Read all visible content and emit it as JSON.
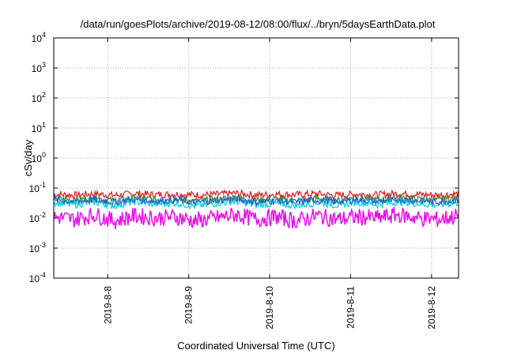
{
  "chart_data": {
    "type": "line",
    "title": "/data/run/goesPlots/archive/2019-08-12/08:00/flux/../bryn/5daysEarthData.plot",
    "xlabel": "Coordinated Universal Time (UTC)",
    "ylabel": "cSv/day",
    "yscale": "log",
    "ylim": [
      0.0001,
      10000
    ],
    "xlim": [
      "2019-08-07T08:00",
      "2019-08-12T08:00"
    ],
    "x_ticks": [
      "2019-8-8",
      "2019-8-9",
      "2019-8-10",
      "2019-8-11",
      "2019-8-12"
    ],
    "y_ticks": [
      {
        "base": "10",
        "exp": "-4"
      },
      {
        "base": "10",
        "exp": "-3"
      },
      {
        "base": "10",
        "exp": "-2"
      },
      {
        "base": "10",
        "exp": "-1"
      },
      {
        "base": "10",
        "exp": "0"
      },
      {
        "base": "10",
        "exp": "1"
      },
      {
        "base": "10",
        "exp": "2"
      },
      {
        "base": "10",
        "exp": "3"
      },
      {
        "base": "10",
        "exp": "4"
      }
    ],
    "grid": true,
    "legend": "none",
    "x": [
      "2019-08-07T08:00",
      "2019-08-07T14:00",
      "2019-08-07T20:00",
      "2019-08-08T02:00",
      "2019-08-08T08:00",
      "2019-08-08T14:00",
      "2019-08-08T20:00",
      "2019-08-09T02:00",
      "2019-08-09T08:00",
      "2019-08-09T14:00",
      "2019-08-09T20:00",
      "2019-08-10T02:00",
      "2019-08-10T08:00",
      "2019-08-10T14:00",
      "2019-08-10T20:00",
      "2019-08-11T02:00",
      "2019-08-11T08:00",
      "2019-08-11T14:00",
      "2019-08-11T20:00",
      "2019-08-12T02:00",
      "2019-08-12T08:00"
    ],
    "series": [
      {
        "color": "#e8141b",
        "values": [
          0.062,
          0.058,
          0.064,
          0.057,
          0.066,
          0.06,
          0.063,
          0.059,
          0.061,
          0.067,
          0.058,
          0.062,
          0.06,
          0.064,
          0.057,
          0.063,
          0.059,
          0.066,
          0.061,
          0.058,
          0.064
        ]
      },
      {
        "color": "#2a8f2a",
        "values": [
          0.045,
          0.04,
          0.046,
          0.038,
          0.047,
          0.041,
          0.044,
          0.036,
          0.043,
          0.048,
          0.039,
          0.042,
          0.037,
          0.045,
          0.038,
          0.046,
          0.04,
          0.047,
          0.042,
          0.039,
          0.045
        ]
      },
      {
        "color": "#00d0e0",
        "values": [
          0.033,
          0.028,
          0.034,
          0.026,
          0.035,
          0.029,
          0.032,
          0.025,
          0.031,
          0.036,
          0.027,
          0.03,
          0.026,
          0.033,
          0.027,
          0.034,
          0.028,
          0.035,
          0.03,
          0.027,
          0.033
        ]
      },
      {
        "color": "#1f5fd8",
        "values": [
          0.04,
          0.036,
          0.041,
          0.034,
          0.042,
          0.037,
          0.04,
          0.033,
          0.039,
          0.043,
          0.035,
          0.038,
          0.034,
          0.04,
          0.035,
          0.041,
          0.036,
          0.042,
          0.038,
          0.035,
          0.04
        ]
      },
      {
        "color": "#f000f0",
        "values": [
          0.011,
          0.009,
          0.013,
          0.008,
          0.012,
          0.01,
          0.011,
          0.008,
          0.01,
          0.013,
          0.009,
          0.011,
          0.008,
          0.012,
          0.009,
          0.011,
          0.01,
          0.013,
          0.01,
          0.009,
          0.012
        ]
      }
    ]
  }
}
